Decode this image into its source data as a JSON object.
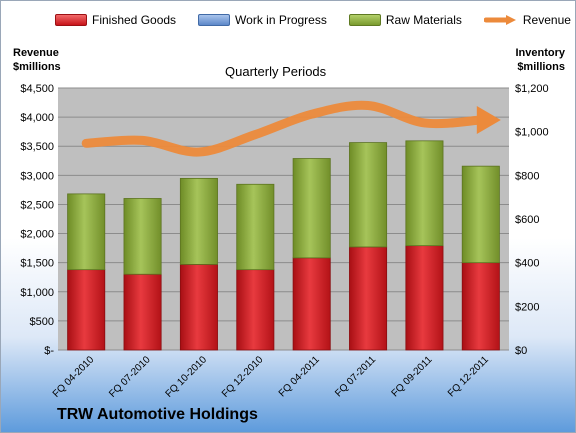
{
  "legend": {
    "finished_goods": "Finished Goods",
    "work_in_progress": "Work in Progress",
    "raw_materials": "Raw Materials",
    "revenue": "Revenue"
  },
  "left_axis_title": [
    "Revenue",
    "$millions"
  ],
  "right_axis_title": [
    "Inventory",
    "$millions"
  ],
  "subtitle": "Quarterly Periods",
  "company": "TRW Automotive Holdings",
  "colors": {
    "finished_goods": "#d0171c",
    "work_in_progress": "#4f81bd",
    "raw_materials": "#8fae3d",
    "revenue": "#ec8a3b",
    "plot_bg": "#bfbfbf"
  },
  "chart_data": {
    "type": "bar",
    "stacked": true,
    "categories": [
      "FQ 04-2010",
      "FQ 07-2010",
      "FQ 10-2010",
      "FQ 12-2010",
      "FQ 04-2011",
      "FQ 07-2011",
      "FQ 09-2011",
      "FQ 12-2011"
    ],
    "series": [
      {
        "name": "Finished Goods",
        "axis": "right",
        "values": [
          368,
          347,
          392,
          368,
          422,
          472,
          478,
          400
        ]
      },
      {
        "name": "Work in Progress",
        "axis": "right",
        "values": [
          0,
          0,
          0,
          0,
          0,
          0,
          0,
          0
        ]
      },
      {
        "name": "Raw Materials",
        "axis": "right",
        "values": [
          347,
          347,
          394,
          391,
          455,
          478,
          480,
          442
        ]
      },
      {
        "name": "Revenue",
        "type": "line",
        "axis": "left",
        "values": [
          3550,
          3600,
          3400,
          3700,
          4050,
          4200,
          3900,
          3950
        ]
      }
    ],
    "y_left": {
      "min": 0,
      "max": 4500,
      "ticks": [
        "$-",
        "$500",
        "$1,000",
        "$1,500",
        "$2,000",
        "$2,500",
        "$3,000",
        "$3,500",
        "$4,000",
        "$4,500"
      ]
    },
    "y_right": {
      "min": 0,
      "max": 1200,
      "ticks": [
        "$0",
        "$200",
        "$400",
        "$600",
        "$800",
        "$1,000",
        "$1,200"
      ]
    },
    "grid": true,
    "legend_position": "top"
  }
}
